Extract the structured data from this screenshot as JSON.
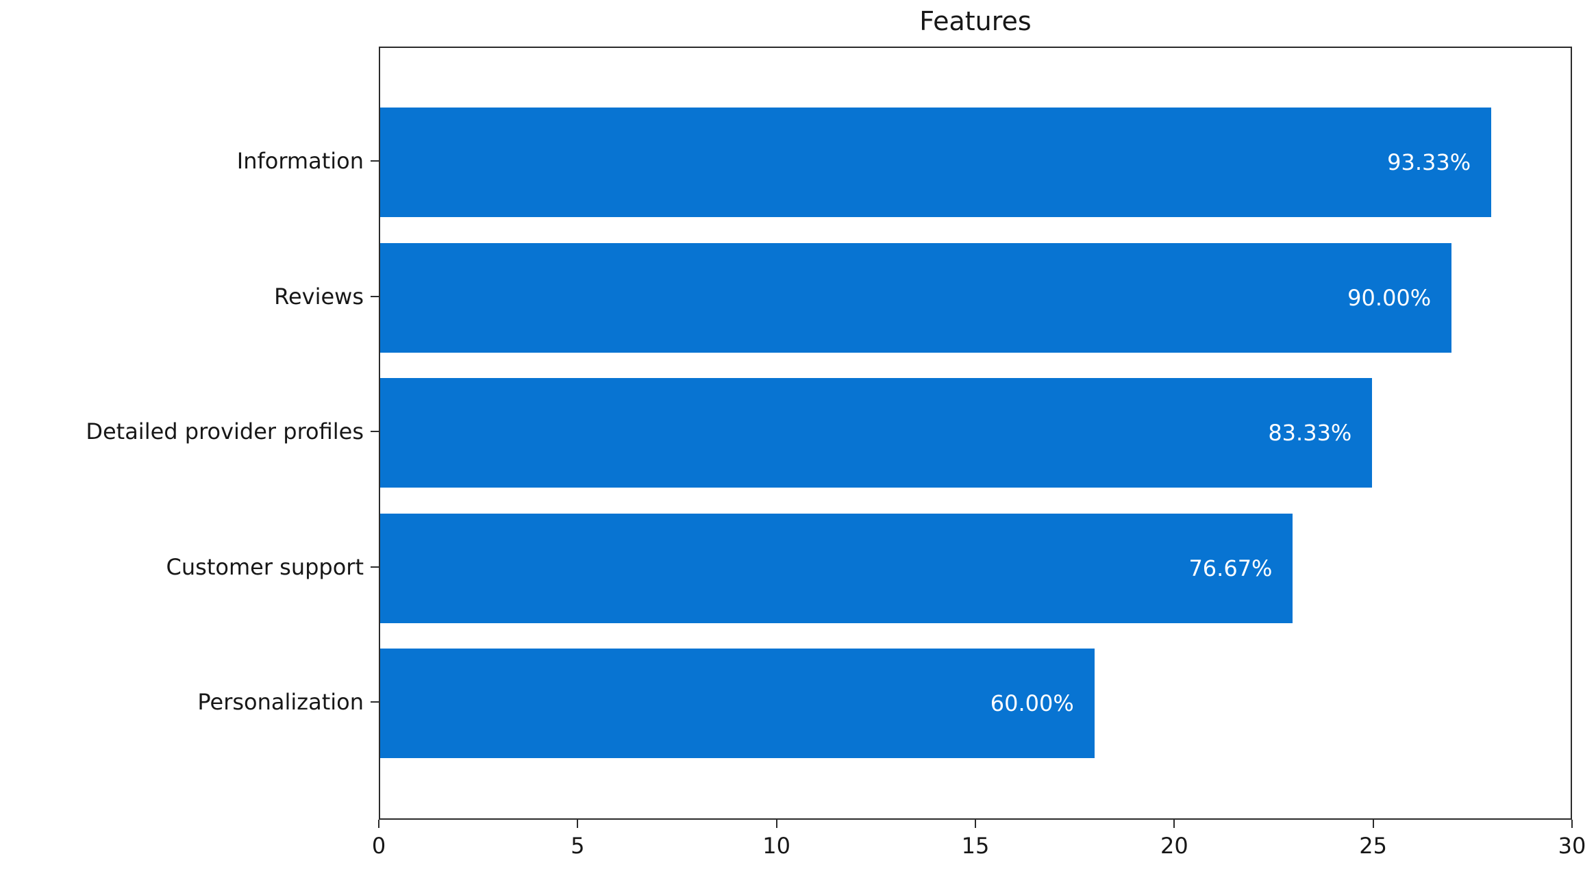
{
  "title": "Features",
  "colors": {
    "bar_fill": "#0874d2",
    "bar_label_text": "#ffffff",
    "axis_text": "#171717",
    "spine": "#2b2b2b",
    "background": "#ffffff"
  },
  "chart_data": {
    "type": "bar",
    "orientation": "horizontal",
    "title": "Features",
    "categories": [
      "Information",
      "Reviews",
      "Detailed provider profiles",
      "Customer support",
      "Personalization"
    ],
    "values": [
      28,
      27,
      25,
      23,
      18
    ],
    "bar_labels": [
      "93.33%",
      "90.00%",
      "83.33%",
      "76.67%",
      "60.00%"
    ],
    "xlabel": "",
    "ylabel": "",
    "xlim": [
      0,
      30
    ],
    "x_ticks": [
      0,
      5,
      10,
      15,
      20,
      25,
      30
    ],
    "grid": false,
    "legend_position": "none"
  }
}
